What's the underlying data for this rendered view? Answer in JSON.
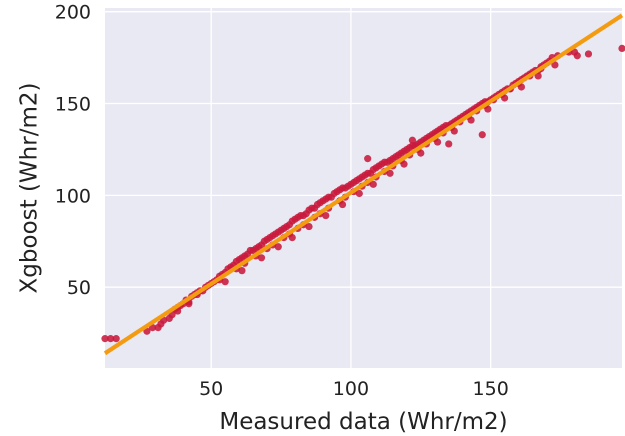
{
  "chart_data": {
    "type": "scatter",
    "title": "",
    "xlabel": "Measured data (Whr/m2)",
    "ylabel": "Xgboost (Whr/m2)",
    "xlim": [
      12,
      197
    ],
    "ylim": [
      6,
      202
    ],
    "x_ticks": [
      50,
      100,
      150
    ],
    "y_ticks": [
      50,
      100,
      150,
      200
    ],
    "grid": true,
    "background_color": "#e9e9f3",
    "grid_color": "#ffffff",
    "point_color": "#c8193c",
    "line_color": "#f39c12",
    "series": [
      {
        "type": "scatter",
        "x": [
          12,
          14,
          16,
          27,
          29,
          31,
          32,
          33,
          35,
          36,
          37,
          38,
          39,
          40,
          41,
          42,
          43,
          44,
          45,
          46,
          47,
          48,
          49,
          50,
          51,
          52,
          53,
          54,
          55,
          56,
          57,
          58,
          59,
          60,
          61,
          62,
          63,
          64,
          65,
          66,
          67,
          68,
          69,
          70,
          71,
          72,
          73,
          74,
          75,
          76,
          77,
          78,
          79,
          80,
          81,
          82,
          83,
          84,
          85,
          86,
          87,
          88,
          89,
          90,
          91,
          92,
          93,
          94,
          95,
          96,
          97,
          98,
          99,
          100,
          101,
          102,
          103,
          104,
          105,
          106,
          107,
          108,
          109,
          110,
          111,
          112,
          113,
          114,
          115,
          116,
          117,
          118,
          119,
          120,
          121,
          122,
          123,
          124,
          125,
          126,
          127,
          128,
          129,
          130,
          131,
          132,
          133,
          134,
          135,
          136,
          137,
          138,
          139,
          140,
          141,
          142,
          143,
          144,
          145,
          146,
          147,
          148,
          149,
          150,
          151,
          152,
          153,
          154,
          155,
          156,
          157,
          158,
          159,
          160,
          161,
          162,
          163,
          164,
          165,
          166,
          167,
          168,
          169,
          170,
          171,
          172,
          174,
          178,
          180,
          181,
          185,
          197,
          38,
          45,
          53,
          59,
          62,
          66,
          70,
          72,
          76,
          78,
          81,
          83,
          87,
          89,
          92,
          96,
          98,
          101,
          104,
          106,
          109,
          112,
          115,
          118,
          121,
          124,
          127,
          130,
          133,
          136,
          139,
          142,
          145,
          148,
          151,
          154,
          157,
          160,
          164,
          168,
          42,
          55,
          61,
          68,
          74,
          79,
          85,
          91,
          97,
          103,
          108,
          114,
          119,
          125,
          131,
          137,
          143,
          149,
          155,
          161,
          167,
          173,
          106,
          122,
          135,
          147,
          148
        ],
        "y": [
          22,
          22,
          22,
          26,
          28,
          28,
          30,
          32,
          33,
          35,
          38,
          37,
          40,
          41,
          43,
          42,
          45,
          46,
          47,
          48,
          48,
          50,
          51,
          52,
          53,
          54,
          56,
          57,
          58,
          60,
          61,
          62,
          64,
          65,
          66,
          67,
          68,
          70,
          70,
          71,
          72,
          73,
          75,
          76,
          77,
          78,
          79,
          80,
          81,
          82,
          83,
          84,
          86,
          87,
          88,
          89,
          89,
          90,
          92,
          93,
          93,
          95,
          96,
          97,
          98,
          99,
          99,
          101,
          102,
          103,
          104,
          104,
          105,
          106,
          107,
          108,
          109,
          110,
          111,
          112,
          112,
          114,
          115,
          116,
          117,
          118,
          118,
          119,
          120,
          121,
          122,
          123,
          124,
          125,
          126,
          127,
          127,
          128,
          129,
          130,
          131,
          132,
          133,
          134,
          135,
          136,
          137,
          138,
          138,
          139,
          140,
          141,
          142,
          143,
          144,
          145,
          146,
          147,
          148,
          149,
          150,
          150,
          151,
          152,
          153,
          154,
          155,
          156,
          157,
          158,
          158,
          160,
          161,
          162,
          163,
          164,
          165,
          166,
          167,
          168,
          168,
          170,
          171,
          172,
          173,
          175,
          176,
          178,
          178,
          176,
          177,
          180,
          39,
          46,
          54,
          60,
          63,
          67,
          71,
          73,
          77,
          79,
          82,
          84,
          88,
          90,
          93,
          97,
          99,
          102,
          105,
          107,
          110,
          113,
          116,
          119,
          122,
          125,
          128,
          131,
          134,
          137,
          140,
          143,
          146,
          149,
          152,
          155,
          158,
          161,
          165,
          169,
          41,
          53,
          59,
          66,
          72,
          77,
          83,
          89,
          95,
          101,
          106,
          112,
          117,
          123,
          129,
          135,
          141,
          147,
          153,
          159,
          165,
          171,
          120,
          130,
          128,
          133,
          151
        ]
      },
      {
        "type": "line",
        "name": "",
        "x": [
          12,
          197
        ],
        "y": [
          14,
          198
        ]
      }
    ]
  }
}
